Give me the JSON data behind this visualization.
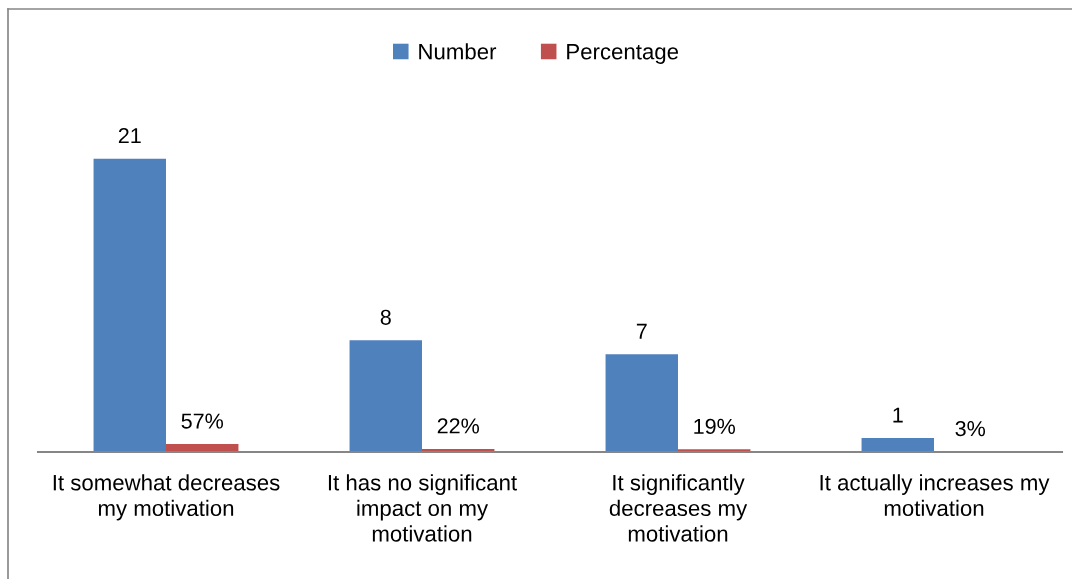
{
  "chart_data": {
    "type": "bar",
    "categories": [
      "It somewhat decreases\nmy motivation",
      "It has no significant\nimpact on my\nmotivation",
      "It significantly\ndecreases my\nmotivation",
      "It actually increases my\nmotivation"
    ],
    "series": [
      {
        "name": "Number",
        "color": "#4f81bd",
        "values": [
          21,
          8,
          7,
          1
        ],
        "value_labels": [
          "21",
          "8",
          "7",
          "1"
        ]
      },
      {
        "name": "Percentage",
        "color": "#c0504d",
        "values": [
          0.57,
          0.22,
          0.19,
          0.03
        ],
        "value_labels": [
          "57%",
          "22%",
          "19%",
          "3%"
        ]
      }
    ],
    "legend": "top",
    "tick_labels": "x"
  }
}
